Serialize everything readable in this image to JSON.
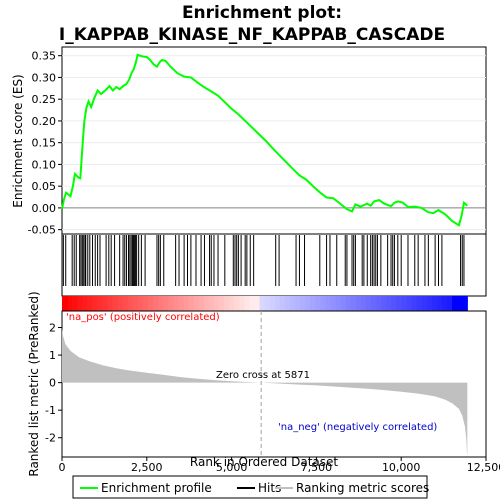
{
  "chart_data": {
    "type": "line",
    "title_line1": "Enrichment plot:",
    "title_line2": "I_KAPPAB_KINASE_NF_KAPPAB_CASCADE",
    "colors": {
      "enrichment": "#00ff00",
      "hits": "#000000",
      "metric_fill": "#c0c0c0",
      "pos_label": "#ff0000",
      "neg_label": "#0000cc",
      "zero_cross_line": "#a0a0a0",
      "bar_red": "#ff0000",
      "bar_blue": "#0000ff"
    },
    "top_panel": {
      "ylabel": "Enrichment score (ES)",
      "ylim": [
        -0.06,
        0.37
      ],
      "yticks": [
        "-0.05",
        "0.00",
        "0.05",
        "0.10",
        "0.15",
        "0.20",
        "0.25",
        "0.30",
        "0.35"
      ],
      "ytick_values": [
        -0.05,
        0.0,
        0.05,
        0.1,
        0.15,
        0.2,
        0.25,
        0.3,
        0.35
      ],
      "es_profile": [
        [
          0,
          -0.002
        ],
        [
          60,
          0.02
        ],
        [
          120,
          0.035
        ],
        [
          250,
          0.027
        ],
        [
          320,
          0.05
        ],
        [
          380,
          0.078
        ],
        [
          480,
          0.07
        ],
        [
          540,
          0.068
        ],
        [
          580,
          0.115
        ],
        [
          620,
          0.16
        ],
        [
          660,
          0.2
        ],
        [
          720,
          0.23
        ],
        [
          780,
          0.245
        ],
        [
          860,
          0.232
        ],
        [
          950,
          0.252
        ],
        [
          1050,
          0.27
        ],
        [
          1150,
          0.262
        ],
        [
          1300,
          0.272
        ],
        [
          1400,
          0.28
        ],
        [
          1500,
          0.27
        ],
        [
          1600,
          0.278
        ],
        [
          1700,
          0.273
        ],
        [
          1800,
          0.28
        ],
        [
          1900,
          0.285
        ],
        [
          1980,
          0.295
        ],
        [
          2050,
          0.31
        ],
        [
          2120,
          0.32
        ],
        [
          2180,
          0.335
        ],
        [
          2230,
          0.352
        ],
        [
          2300,
          0.35
        ],
        [
          2400,
          0.348
        ],
        [
          2500,
          0.347
        ],
        [
          2600,
          0.34
        ],
        [
          2700,
          0.33
        ],
        [
          2800,
          0.325
        ],
        [
          2880,
          0.335
        ],
        [
          2950,
          0.34
        ],
        [
          3050,
          0.338
        ],
        [
          3200,
          0.325
        ],
        [
          3400,
          0.31
        ],
        [
          3600,
          0.302
        ],
        [
          3800,
          0.3
        ],
        [
          4000,
          0.288
        ],
        [
          4200,
          0.277
        ],
        [
          4400,
          0.268
        ],
        [
          4600,
          0.258
        ],
        [
          4800,
          0.243
        ],
        [
          5000,
          0.228
        ],
        [
          5200,
          0.215
        ],
        [
          5400,
          0.2
        ],
        [
          5600,
          0.185
        ],
        [
          5800,
          0.17
        ],
        [
          6000,
          0.155
        ],
        [
          6200,
          0.138
        ],
        [
          6400,
          0.122
        ],
        [
          6600,
          0.106
        ],
        [
          6800,
          0.09
        ],
        [
          7000,
          0.075
        ],
        [
          7200,
          0.065
        ],
        [
          7400,
          0.05
        ],
        [
          7600,
          0.036
        ],
        [
          7800,
          0.024
        ],
        [
          8000,
          0.022
        ],
        [
          8200,
          0.01
        ],
        [
          8400,
          -0.003
        ],
        [
          8550,
          -0.008
        ],
        [
          8650,
          0.008
        ],
        [
          8800,
          0.003
        ],
        [
          9000,
          0.01
        ],
        [
          9100,
          0.005
        ],
        [
          9200,
          0.015
        ],
        [
          9350,
          0.018
        ],
        [
          9500,
          0.01
        ],
        [
          9700,
          0.004
        ],
        [
          9800,
          0.012
        ],
        [
          9900,
          0.015
        ],
        [
          10050,
          0.012
        ],
        [
          10200,
          0.002
        ],
        [
          10400,
          0.003
        ],
        [
          10600,
          0.0
        ],
        [
          10800,
          -0.01
        ],
        [
          10950,
          -0.012
        ],
        [
          11100,
          -0.005
        ],
        [
          11300,
          -0.015
        ],
        [
          11500,
          -0.03
        ],
        [
          11700,
          -0.04
        ],
        [
          11780,
          -0.018
        ],
        [
          11850,
          0.012
        ],
        [
          11950,
          0.005
        ]
      ]
    },
    "hits": [
      40,
      110,
      300,
      360,
      420,
      520,
      560,
      600,
      640,
      680,
      700,
      760,
      820,
      900,
      980,
      1050,
      1120,
      1300,
      1380,
      1450,
      1550,
      1700,
      1800,
      1850,
      1900,
      1960,
      2000,
      2040,
      2080,
      2110,
      2140,
      2170,
      2200,
      2260,
      2340,
      2450,
      2800,
      2850,
      2900,
      3000,
      3350,
      3450,
      3600,
      3700,
      3800,
      3950,
      4100,
      4200,
      4350,
      4400,
      4480,
      4600,
      4800,
      5050,
      5100,
      5150,
      5200,
      5280,
      5400,
      5450,
      5550,
      5650,
      6300,
      6400,
      6900,
      7000,
      7150,
      7600,
      7800,
      7900,
      8100,
      8350,
      8400,
      8550,
      8600,
      8650,
      8850,
      8900,
      9000,
      9100,
      9150,
      9200,
      9250,
      9300,
      9400,
      9600,
      9700,
      9750,
      9800,
      9900,
      10000,
      10200,
      10400,
      10500,
      10700,
      10800,
      11000,
      11100,
      11200,
      11750,
      11800,
      11850
    ],
    "ranked_metric": {
      "ylabel": "Ranked list metric (PreRanked)",
      "xlabel": "Rank in Ordered Dataset",
      "ylim": [
        -2.7,
        2.6
      ],
      "yticks": [
        "-2",
        "-1",
        "0",
        "1",
        "2"
      ],
      "ytick_values": [
        -2,
        -1,
        0,
        1,
        2
      ],
      "profile": [
        [
          0,
          1.95
        ],
        [
          30,
          1.7
        ],
        [
          100,
          1.4
        ],
        [
          250,
          1.15
        ],
        [
          500,
          0.92
        ],
        [
          800,
          0.78
        ],
        [
          1200,
          0.63
        ],
        [
          1600,
          0.52
        ],
        [
          2000,
          0.44
        ],
        [
          2500,
          0.36
        ],
        [
          3000,
          0.28
        ],
        [
          3500,
          0.2
        ],
        [
          4000,
          0.14
        ],
        [
          4500,
          0.09
        ],
        [
          5000,
          0.05
        ],
        [
          5500,
          0.02
        ],
        [
          5871,
          0.0
        ],
        [
          6500,
          -0.04
        ],
        [
          7000,
          -0.07
        ],
        [
          7500,
          -0.1
        ],
        [
          8000,
          -0.14
        ],
        [
          8500,
          -0.18
        ],
        [
          9000,
          -0.22
        ],
        [
          9500,
          -0.27
        ],
        [
          10000,
          -0.33
        ],
        [
          10500,
          -0.4
        ],
        [
          11000,
          -0.5
        ],
        [
          11300,
          -0.62
        ],
        [
          11500,
          -0.75
        ],
        [
          11700,
          -0.95
        ],
        [
          11800,
          -1.2
        ],
        [
          11880,
          -1.6
        ],
        [
          11920,
          -2.05
        ],
        [
          11940,
          -2.6
        ],
        [
          11950,
          -2.6
        ]
      ],
      "pos_label": "'na_pos' (positively correlated)",
      "neg_label": "'na_neg' (negatively correlated)",
      "zero_cross_label": "Zero cross at 5871",
      "zero_cross": 5871
    },
    "xlim": [
      0,
      12500
    ],
    "n_genes": 11950,
    "xticks": [
      "0",
      "2,500",
      "5,000",
      "7,500",
      "10,000",
      "12,500"
    ],
    "xtick_values": [
      0,
      2500,
      5000,
      7500,
      10000,
      12500
    ],
    "legend": {
      "placement": "bottom",
      "items": [
        {
          "label": "Enrichment profile",
          "kind": "green-line"
        },
        {
          "label": "Hits",
          "kind": "black-line"
        },
        {
          "label": "Ranking metric scores",
          "kind": "gray-line"
        }
      ]
    }
  }
}
